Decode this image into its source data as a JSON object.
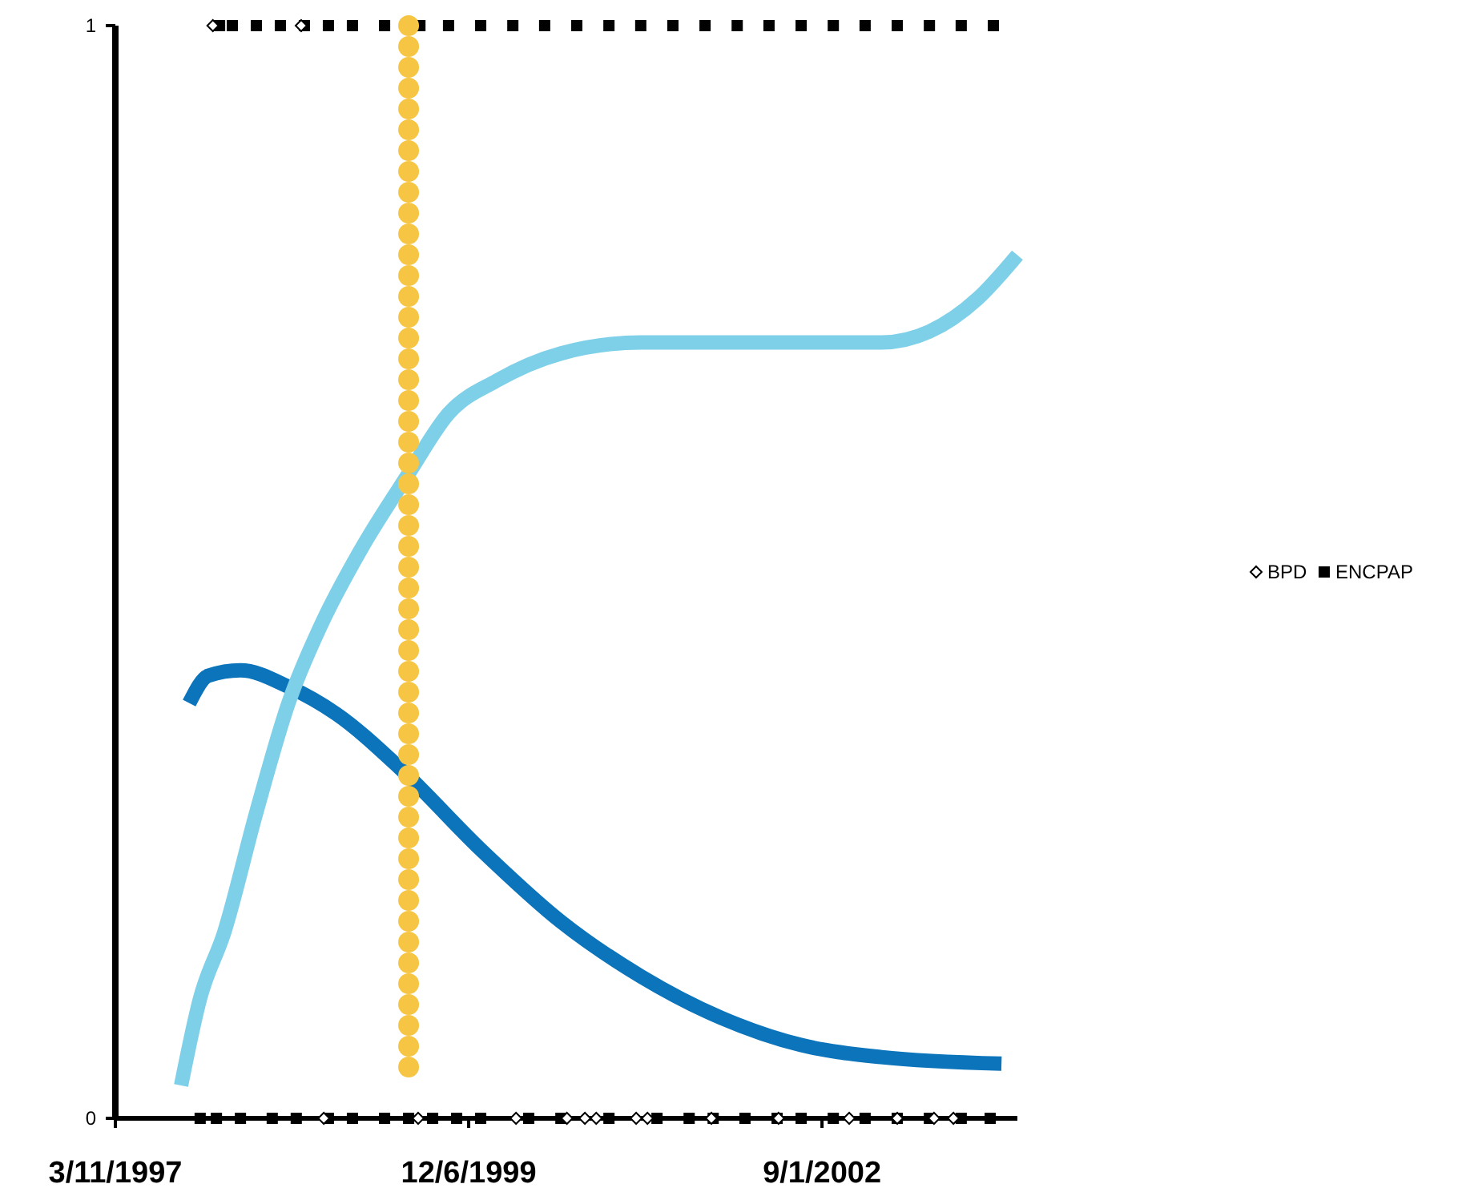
{
  "chart_data": {
    "type": "scatter",
    "xlim": [
      "1997-03-11",
      "2004-03-07"
    ],
    "ylim": [
      0,
      1
    ],
    "xticks": [
      {
        "value": "1997-03-11",
        "label": "3/11/1997"
      },
      {
        "value": "1999-12-06",
        "label": "12/6/1999"
      },
      {
        "value": "2002-09-01",
        "label": "9/1/2002"
      }
    ],
    "yticks": [
      0,
      1
    ],
    "legend": "right",
    "grid": false,
    "ref_lines": [
      {
        "axis": "x",
        "value": "1999-06-19",
        "color": "#f7c544",
        "line_style": "dotted"
      }
    ],
    "series": [
      {
        "name": "BPD",
        "marker": "diamond",
        "color": "#000000",
        "x": [
          "1997-12-12",
          "1998-08-19",
          "1998-10-22",
          "1999-07-16",
          "2000-04-18",
          "2000-09-09",
          "2000-10-30",
          "2000-12-01",
          "2001-03-24",
          "2001-04-25",
          "2001-10-23",
          "2002-05-01",
          "2002-11-17",
          "2003-04-02",
          "2003-07-15",
          "2003-09-08"
        ],
        "values": [
          1,
          1,
          0,
          0,
          0,
          0,
          0,
          0,
          0,
          0,
          0,
          0,
          0,
          0,
          0,
          0
        ]
      },
      {
        "name": "ENCPAP",
        "marker": "square",
        "color": "#000000",
        "x": [
          "1997-12-31",
          "1998-02-05",
          "1998-04-14",
          "1998-06-21",
          "1998-08-28",
          "1998-11-04",
          "1999-01-11",
          "1999-04-12",
          "1999-07-21",
          "1999-10-10",
          "2000-01-09",
          "2000-04-09",
          "2000-07-08",
          "2000-10-07",
          "2001-01-06",
          "2001-04-06",
          "2001-07-06",
          "2001-10-05",
          "2002-01-04",
          "2002-04-04",
          "2002-07-04",
          "2002-10-03",
          "2003-01-01",
          "2003-04-02",
          "2003-07-02",
          "2003-09-30",
          "2003-12-30",
          "1997-11-06",
          "1997-12-22",
          "1998-02-28",
          "1998-05-29",
          "1998-08-05",
          "1998-11-04",
          "1999-01-11",
          "1999-04-12",
          "1999-06-19",
          "1999-08-26",
          "1999-11-02",
          "2000-01-09",
          "2000-05-24",
          "2000-08-23",
          "2001-01-06",
          "2001-05-22",
          "2001-08-21",
          "2001-10-28",
          "2002-01-26",
          "2002-04-27",
          "2002-07-04",
          "2002-10-03",
          "2003-01-01",
          "2003-04-02",
          "2003-07-02",
          "2003-09-30",
          "2003-12-21"
        ],
        "values": [
          1,
          1,
          1,
          1,
          1,
          1,
          1,
          1,
          1,
          1,
          1,
          1,
          1,
          1,
          1,
          1,
          1,
          1,
          1,
          1,
          1,
          1,
          1,
          1,
          1,
          1,
          1,
          0,
          0,
          0,
          0,
          0,
          0,
          0,
          0,
          0,
          0,
          0,
          0,
          0,
          0,
          0,
          0,
          0,
          0,
          0,
          0,
          0,
          0,
          0,
          0,
          0,
          0,
          0
        ]
      },
      {
        "type": "line",
        "color": "#7ed0e8",
        "x": [
          "1997-09-13",
          "1997-11-06",
          "1998-01-13",
          "1998-04-14",
          "1998-07-14",
          "1998-10-12",
          "1999-02-03",
          "1999-06-19",
          "1999-10-10",
          "2000-02-23",
          "2000-08-23",
          "2001-04-06",
          "2001-11-19",
          "2002-07-04",
          "2003-02-16",
          "2003-07-02",
          "2003-11-15",
          "2004-03-07"
        ],
        "values": [
          0.03,
          0.11,
          0.17,
          0.28,
          0.38,
          0.45,
          0.52,
          0.59,
          0.645,
          0.675,
          0.7,
          0.71,
          0.71,
          0.71,
          0.71,
          0.72,
          0.75,
          0.79
        ]
      },
      {
        "type": "line",
        "color": "#0b74bb",
        "x": [
          "1997-10-06",
          "1997-11-29",
          "1998-02-28",
          "1998-07-14",
          "1998-11-27",
          "1999-05-27",
          "2000-01-09",
          "2000-08-23",
          "2001-04-06",
          "2001-11-19",
          "2002-07-04",
          "2003-02-16",
          "2004-01-22"
        ],
        "values": [
          0.38,
          0.405,
          0.41,
          0.395,
          0.37,
          0.32,
          0.246,
          0.18,
          0.13,
          0.092,
          0.067,
          0.056,
          0.05
        ]
      }
    ]
  }
}
